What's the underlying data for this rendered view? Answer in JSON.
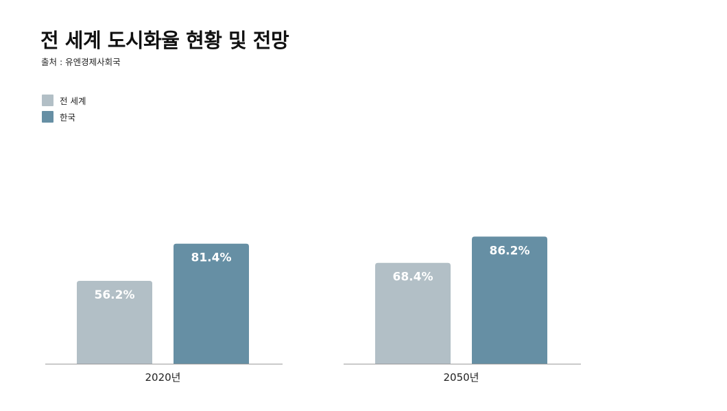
{
  "header": {
    "title": "전 세계 도시화율 현황 및 전망",
    "source": "출처 : 유엔경제사회국"
  },
  "legend": [
    {
      "label": "전 세계",
      "color": "#b2bfc6"
    },
    {
      "label": "한국",
      "color": "#668fa4"
    }
  ],
  "chart_data": {
    "type": "bar",
    "title": "전 세계 도시화율 현황 및 전망",
    "subtitle": "출처 : 유엔경제사회국",
    "categories": [
      "2020년",
      "2050년"
    ],
    "series": [
      {
        "name": "전 세계",
        "color": "#b2bfc6",
        "values": [
          56.2,
          68.4
        ],
        "labels": [
          "56.2%",
          "68.4%"
        ]
      },
      {
        "name": "한국",
        "color": "#668fa4",
        "values": [
          81.4,
          86.2
        ],
        "labels": [
          "81.4%",
          "86.2%"
        ]
      }
    ],
    "xlabel": "",
    "ylabel": "",
    "ylim": [
      0,
      100
    ],
    "grid": false,
    "legend_position": "top-left"
  }
}
